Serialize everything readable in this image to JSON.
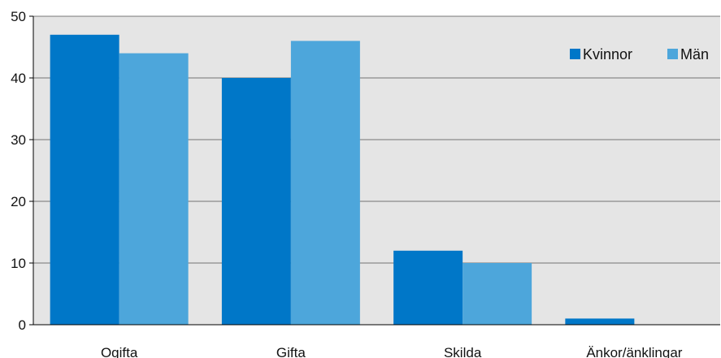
{
  "chart_data": {
    "type": "bar",
    "title": "",
    "xlabel": "",
    "ylabel": "",
    "categories": [
      "Ogifta",
      "Gifta",
      "Skilda",
      "Änkor/änklingar"
    ],
    "series": [
      {
        "name": "Kvinnor",
        "values": [
          47,
          40,
          12,
          1
        ],
        "color": "#0077c8"
      },
      {
        "name": "Män",
        "values": [
          44,
          46,
          10,
          0
        ],
        "color": "#4da6db"
      }
    ],
    "ylim": [
      0,
      50
    ],
    "yticks": [
      0,
      10,
      20,
      30,
      40,
      50
    ],
    "grid": true,
    "legend_position": "top-right",
    "plot_background": "#e5e5e5"
  }
}
